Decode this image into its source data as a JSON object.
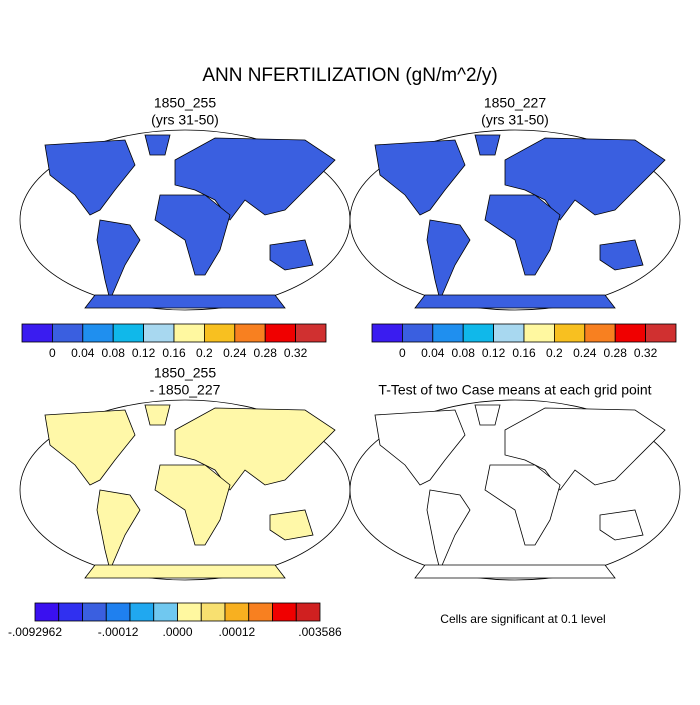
{
  "title": "ANN NFERTILIZATION (gN/m^2/y)",
  "panels": [
    {
      "title": "1850_255",
      "subtitle": "(yrs 31-50)",
      "land_color": "#3a5fe0"
    },
    {
      "title": "1850_227",
      "subtitle": "(yrs 31-50)",
      "land_color": "#3a5fe0"
    },
    {
      "title": "1850_255",
      "subtitle": "- 1850_227",
      "land_color": "#fff8a8"
    },
    {
      "title": "T-Test of two Case means at each grid point",
      "note": "Cells are significant at 0.1 level",
      "land_color": "#ffffff",
      "dot_color": "#e00000"
    }
  ],
  "colorbars": [
    {
      "colors": [
        "#3a1cf0",
        "#3a5fe0",
        "#1f8fef",
        "#10b8ea",
        "#a8d8f0",
        "#fff8a0",
        "#f8c020",
        "#f88020",
        "#f00000",
        "#d03030"
      ],
      "labels": [
        "0",
        "0.04",
        "0.08",
        "0.12",
        "0.16",
        "0.2",
        "0.24",
        "0.28",
        "0.32"
      ]
    },
    {
      "colors": [
        "#3a1cf0",
        "#3a5fe0",
        "#1f8fef",
        "#10b8ea",
        "#a8d8f0",
        "#fff8a0",
        "#f8c020",
        "#f88020",
        "#f00000",
        "#d03030"
      ],
      "labels": [
        "0",
        "0.04",
        "0.08",
        "0.12",
        "0.16",
        "0.2",
        "0.24",
        "0.28",
        "0.32"
      ]
    },
    {
      "colors": [
        "#3a10f0",
        "#3030f0",
        "#3a5fe0",
        "#1f80ef",
        "#20a8f0",
        "#70c8f0",
        "#fff8a0",
        "#f8e070",
        "#f8b020",
        "#f88020",
        "#f00000",
        "#d02020"
      ],
      "labels": [
        "-.0092962",
        "-.00012",
        ".0000",
        ".00012",
        ".003586"
      ]
    }
  ]
}
